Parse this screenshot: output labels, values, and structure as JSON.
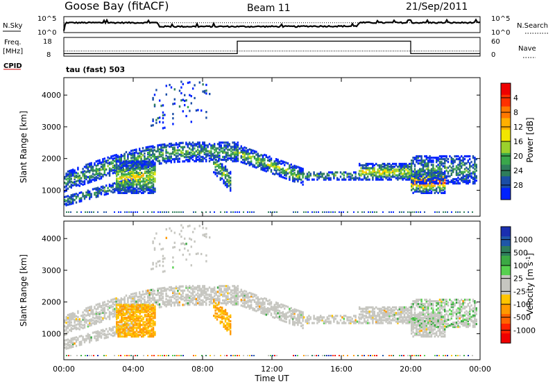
{
  "header": {
    "station": "Goose Bay (fitACF)",
    "beam": "Beam 11",
    "date": "21/Sep/2011"
  },
  "chart_data": [
    {
      "type": "line",
      "panel": "noise",
      "left_label": "N.Sky",
      "right_label": "N.Search",
      "left_ticks": [
        "10^5",
        "10^0"
      ],
      "right_ticks": [
        "10^5",
        "10^0"
      ],
      "x_hours": [
        0,
        0.1,
        5.4,
        5.5,
        13.7,
        13.8,
        16.9,
        17.0,
        24
      ],
      "sky_level": [
        0.1,
        0.62,
        0.62,
        0.38,
        0.38,
        0.4,
        0.4,
        0.62,
        0.62
      ],
      "search_level": [
        0.62,
        0.62,
        0.62,
        0.62,
        0.62,
        0.62,
        0.62,
        0.62,
        0.62
      ]
    },
    {
      "type": "line",
      "panel": "frequency",
      "left_label": "Freq.",
      "left_unit": "[MHz]",
      "right_label": "Nave",
      "left_ticks": [
        "18",
        "8"
      ],
      "right_ticks": [
        "60",
        "0"
      ],
      "cpid_label": "CPID",
      "cpid_text": "tau (fast) 503",
      "freq_mhz": 10,
      "nave_steps": [
        {
          "from": 0,
          "to": 10.0,
          "value": 8
        },
        {
          "from": 10.0,
          "to": 20.0,
          "value": 48
        },
        {
          "from": 20.0,
          "to": 24,
          "value": 8
        }
      ]
    },
    {
      "type": "heatmap",
      "panel": "power",
      "ylabel": "Slant Range [km]",
      "yticks": [
        "1000",
        "2000",
        "3000",
        "4000"
      ],
      "ylim": [
        180,
        4550
      ],
      "colorbar_label": "Power [dB]",
      "colorbar_ticks": [
        "4",
        "8",
        "12",
        "16",
        "20",
        "24",
        "28"
      ],
      "colors": [
        "#0022ff",
        "#1b4ea6",
        "#2e7d5b",
        "#3aa74b",
        "#9bd12c",
        "#f2e600",
        "#ffb000",
        "#ff7800",
        "#ff3000",
        "#ee0000"
      ]
    },
    {
      "type": "heatmap",
      "panel": "velocity",
      "ylabel": "Slant Range [km]",
      "yticks": [
        "1000",
        "2000",
        "3000",
        "4000"
      ],
      "ylim": [
        180,
        4550
      ],
      "xlabel": "Time UT",
      "xticks": [
        "00:00",
        "04:00",
        "08:00",
        "12:00",
        "16:00",
        "20:00",
        "00:00"
      ],
      "colorbar_label": "Velocity [m s",
      "colorbar_exp": "-1",
      "colorbar_ticks": [
        "1000",
        "500",
        "100",
        "25",
        "-25",
        "-100",
        "-500",
        "-1000"
      ],
      "colors": [
        "#1a2fb0",
        "#1f57a8",
        "#2e7d5b",
        "#3ca944",
        "#58d04f",
        "#c6c6c0",
        "#c6c6c0",
        "#ffc400",
        "#ff9a00",
        "#ff6400",
        "#ff2200",
        "#ee0000"
      ]
    }
  ]
}
